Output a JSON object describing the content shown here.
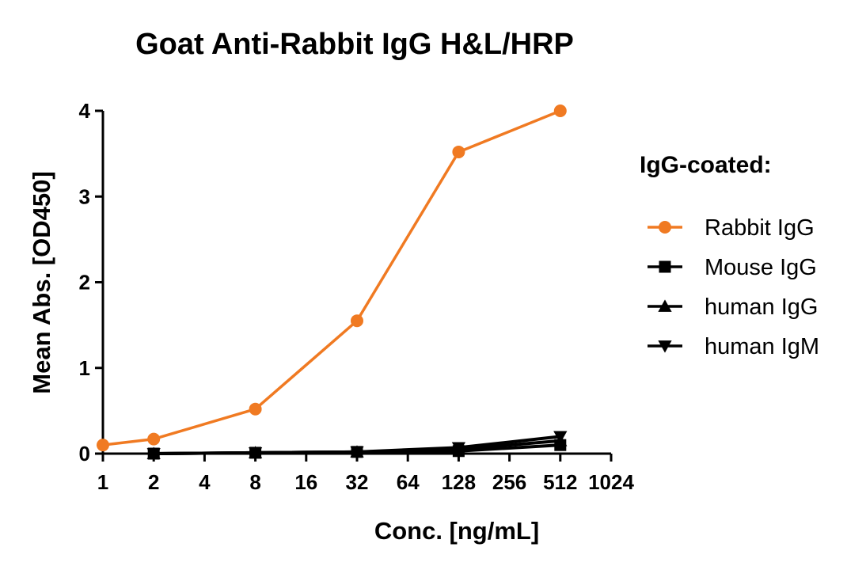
{
  "chart_data": {
    "type": "line",
    "title": "Goat Anti-Rabbit IgG H&L/HRP",
    "xlabel": "Conc. [ng/mL]",
    "ylabel": "Mean Abs. [OD450]",
    "x_scale": "log2",
    "xlim": [
      1,
      1024
    ],
    "ylim": [
      0,
      4
    ],
    "x_ticks": [
      1,
      2,
      4,
      8,
      16,
      32,
      64,
      128,
      256,
      512,
      1024
    ],
    "y_ticks": [
      0,
      1,
      2,
      3,
      4
    ],
    "grid": false,
    "legend": {
      "title": "IgG-coated:",
      "placement": "right"
    },
    "series": [
      {
        "name": "Rabbit IgG",
        "color": "#F07A22",
        "marker": "circle",
        "x": [
          1,
          2,
          8,
          32,
          128,
          512
        ],
        "y": [
          0.1,
          0.17,
          0.52,
          1.55,
          3.52,
          4.0
        ]
      },
      {
        "name": "Mouse IgG",
        "color": "#000000",
        "marker": "square",
        "x": [
          2,
          8,
          32,
          128,
          512
        ],
        "y": [
          0.0,
          0.01,
          0.02,
          0.03,
          0.1
        ]
      },
      {
        "name": "human IgG",
        "color": "#000000",
        "marker": "triangle-up",
        "x": [
          2,
          8,
          32,
          128,
          512
        ],
        "y": [
          0.0,
          0.01,
          0.02,
          0.05,
          0.15
        ]
      },
      {
        "name": "human IgM",
        "color": "#000000",
        "marker": "triangle-down",
        "x": [
          2,
          8,
          32,
          128,
          512
        ],
        "y": [
          0.0,
          0.01,
          0.02,
          0.07,
          0.2
        ]
      }
    ]
  }
}
